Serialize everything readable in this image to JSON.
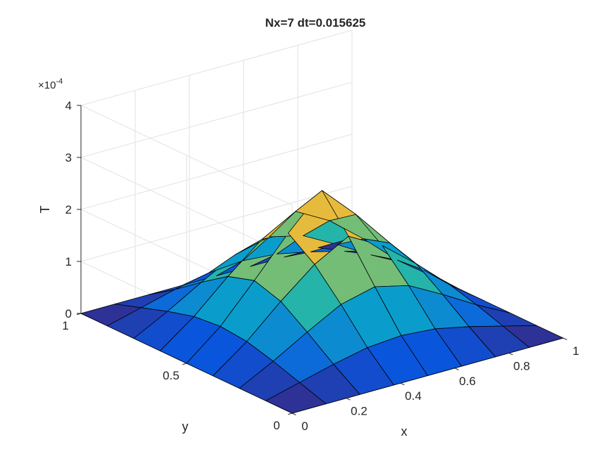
{
  "chart_data": {
    "type": "surface",
    "title": "Nx=7 dt=0.015625",
    "xlabel": "x",
    "ylabel": "y",
    "zlabel": "T",
    "z_exponent_base": "×10",
    "z_exponent": "-4",
    "xlim": [
      0,
      1
    ],
    "ylim": [
      0,
      1
    ],
    "zlim": [
      0,
      4
    ],
    "x_ticks": [
      0,
      0.2,
      0.4,
      0.6,
      0.8,
      1
    ],
    "x_tick_labels": [
      "0",
      "0.2",
      "0.4",
      "0.6",
      "0.8",
      "1"
    ],
    "y_ticks": [
      0,
      0.5,
      1
    ],
    "y_tick_labels": [
      "0",
      "0.5",
      "1"
    ],
    "z_ticks": [
      0,
      1,
      2,
      3,
      4
    ],
    "z_tick_labels": [
      "0",
      "1",
      "2",
      "3",
      "4"
    ],
    "grid": true,
    "colormap": "parula",
    "grid_x": [
      0,
      0.125,
      0.25,
      0.375,
      0.5,
      0.625,
      0.75,
      0.875,
      1
    ],
    "grid_y": [
      0,
      0.125,
      0.25,
      0.375,
      0.5,
      0.625,
      0.75,
      0.875,
      1
    ],
    "z": [
      [
        0,
        0,
        0,
        0,
        0,
        0,
        0,
        0,
        0
      ],
      [
        0,
        0.17,
        0.34,
        0.48,
        0.53,
        0.48,
        0.34,
        0.17,
        0
      ],
      [
        0,
        0.34,
        0.72,
        1.07,
        1.23,
        1.07,
        0.72,
        0.34,
        0
      ],
      [
        0,
        0.48,
        1.07,
        1.6,
        1.96,
        1.6,
        1.07,
        0.48,
        0
      ],
      [
        0,
        0.53,
        1.23,
        1.96,
        2.6,
        1.96,
        1.23,
        0.53,
        0
      ],
      [
        0,
        0.48,
        1.07,
        1.6,
        1.96,
        1.6,
        1.07,
        0.48,
        0
      ],
      [
        0,
        0.34,
        0.72,
        1.07,
        1.23,
        1.07,
        0.72,
        0.34,
        0
      ],
      [
        0,
        0.17,
        0.34,
        0.48,
        0.53,
        0.48,
        0.34,
        0.17,
        0
      ],
      [
        0,
        0,
        0,
        0,
        0,
        0,
        0,
        0,
        0
      ]
    ]
  }
}
